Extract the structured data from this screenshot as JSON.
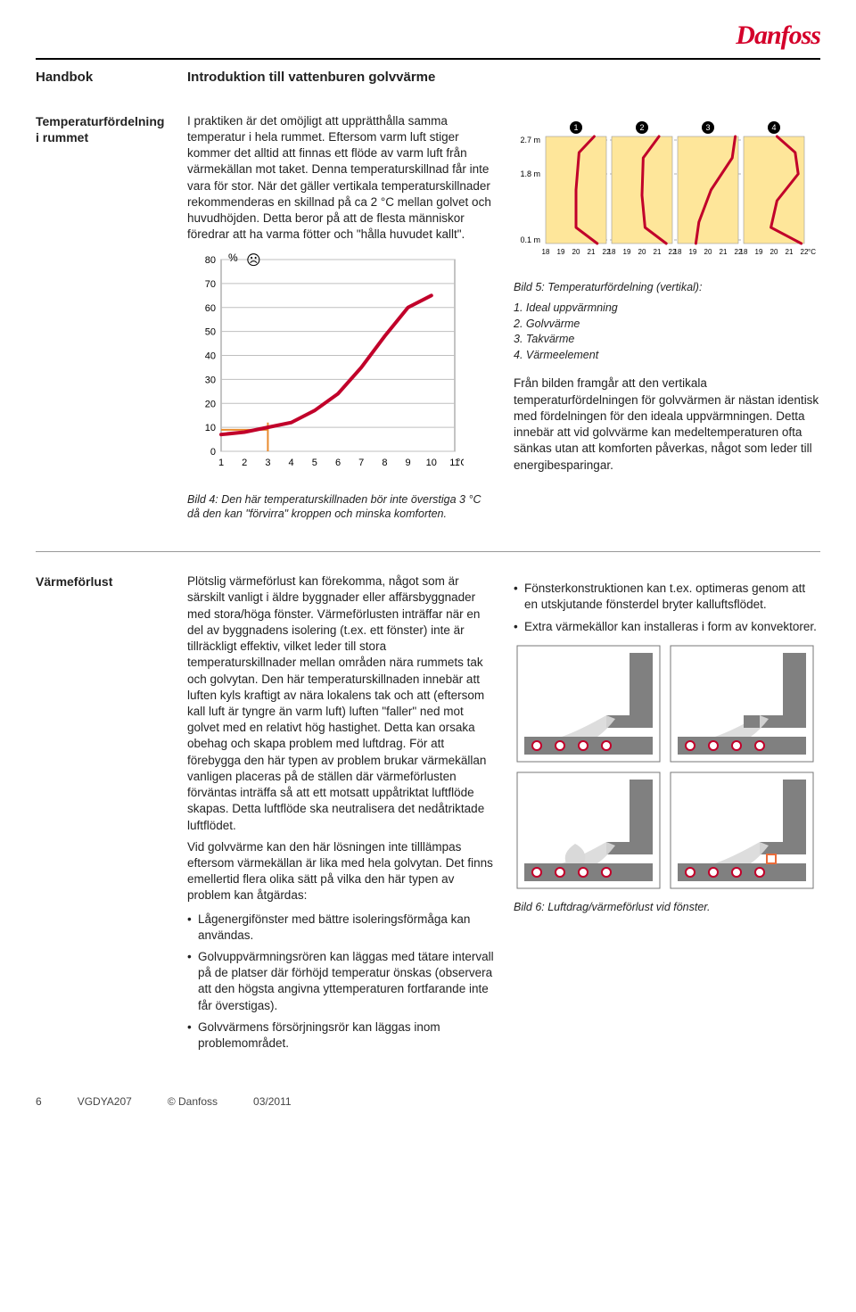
{
  "brand": "Danfoss",
  "header": {
    "handbok": "Handbok",
    "subtitle": "Introduktion till vattenburen golvvärme"
  },
  "section1": {
    "lead": "Temperaturfördelning i rummet",
    "para": "I praktiken är det omöjligt att upprätthålla samma temperatur i hela rummet. Eftersom varm luft stiger kommer det alltid att finnas ett flöde av varm luft från värmekällan mot taket. Denna temperaturskillnad får inte vara för stor. När det gäller vertikala temperaturskillnader rekommenderas en skillnad på ca 2 °C mellan golvet och huvudhöjden. Detta beror på att de flesta människor föredrar att ha varma fötter och \"hålla huvudet kallt\".",
    "chart4": {
      "y_ticks": [
        "0",
        "10",
        "20",
        "30",
        "40",
        "50",
        "60",
        "70",
        "80"
      ],
      "y_unit": "%",
      "x_ticks": [
        "1",
        "2",
        "3",
        "4",
        "5",
        "6",
        "7",
        "8",
        "9",
        "10",
        "11"
      ],
      "x_unit": "°C",
      "line_color": "#c1002a",
      "marker_x": 3,
      "curve": [
        [
          1,
          7
        ],
        [
          2,
          8
        ],
        [
          3,
          10
        ],
        [
          4,
          12
        ],
        [
          5,
          17
        ],
        [
          6,
          24
        ],
        [
          7,
          35
        ],
        [
          8,
          48
        ],
        [
          9,
          60
        ],
        [
          10,
          65
        ]
      ],
      "bg": "#ffffff",
      "grid": "#bfbfbf"
    },
    "caption4": "Bild 4: Den här temperaturskillnaden bör inte överstiga 3 °C då den kan \"förvirra\" kroppen och minska komforten.",
    "chart5": {
      "panel_bg": "#fee69a",
      "line_color": "#c1002a",
      "y_labels": [
        "2.7 m",
        "1.8 m",
        "0.1 m"
      ],
      "x_ticks": [
        "18",
        "19",
        "20",
        "21",
        "22"
      ],
      "x_unit": "°C",
      "badges": [
        "1",
        "2",
        "3",
        "4"
      ]
    },
    "caption5_title": "Bild 5: Temperaturfördelning (vertikal):",
    "caption5_items": [
      "1. Ideal uppvärmning",
      "2. Golvvärme",
      "3. Takvärme",
      "4. Värmeelement"
    ],
    "para2": "Från bilden framgår att den vertikala temperaturfördelningen för golvvärmen är nästan identisk med fördelningen för den ideala uppvärmningen. Detta innebär att vid golvvärme kan medeltemperaturen ofta sänkas utan att komforten påverkas, något som leder till energibesparingar."
  },
  "section2": {
    "lead": "Värmeförlust",
    "para": "Plötslig värmeförlust kan förekomma, något som är särskilt vanligt i äldre byggnader eller affärsbyggnader med stora/höga fönster. Värmeförlusten inträffar när en del av byggnadens isolering (t.ex. ett fönster) inte är tillräckligt effektiv, vilket leder till stora temperaturskillnader mellan områden nära rummets tak och golvytan. Den här temperaturskillnaden innebär att luften kyls kraftigt av nära lokalens tak och att (eftersom kall luft är tyngre än varm luft) luften \"faller\" ned mot golvet med en relativt hög hastighet. Detta kan orsaka obehag och skapa problem med luftdrag. För att förebygga den här typen av problem brukar värmekällan vanligen placeras på de ställen där värmeförlusten förväntas inträffa så att ett motsatt uppåtriktat luftflöde skapas. Detta luftflöde ska neutralisera det nedåtriktade luftflödet.",
    "para_b": "Vid golvvärme kan den här lösningen inte tilllämpas eftersom värmekällan är lika med hela golvytan. Det finns emellertid flera olika sätt på vilka den här typen av problem kan åtgärdas:",
    "bullets_left": [
      "Lågenergifönster med bättre isoleringsförmåga kan användas.",
      "Golvuppvärmningsrören kan läggas med tätare intervall på de platser där förhöjd temperatur önskas (observera att den högsta angivna yttemperaturen fortfarande inte får överstigas).",
      "Golvvärmens försörjningsrör kan läggas inom problemområdet."
    ],
    "bullets_right": [
      "Fönsterkonstruktionen kan t.ex. optimeras genom att en utskjutande fönsterdel bryter kalluftsflödet.",
      "Extra värmekällor kan installeras i form av konvektorer."
    ],
    "fig6": {
      "wall": "#808080",
      "floor": "#808080",
      "air": "#d9d9d9",
      "pipe_fill": "#ffffff",
      "pipe_stroke": "#c1002a",
      "radiator": "#e96b3a"
    },
    "caption6": "Bild 6: Luftdrag/värmeförlust vid fönster."
  },
  "footer": {
    "page": "6",
    "code": "VGDYA207",
    "copy": "© Danfoss",
    "date": "03/2011"
  }
}
